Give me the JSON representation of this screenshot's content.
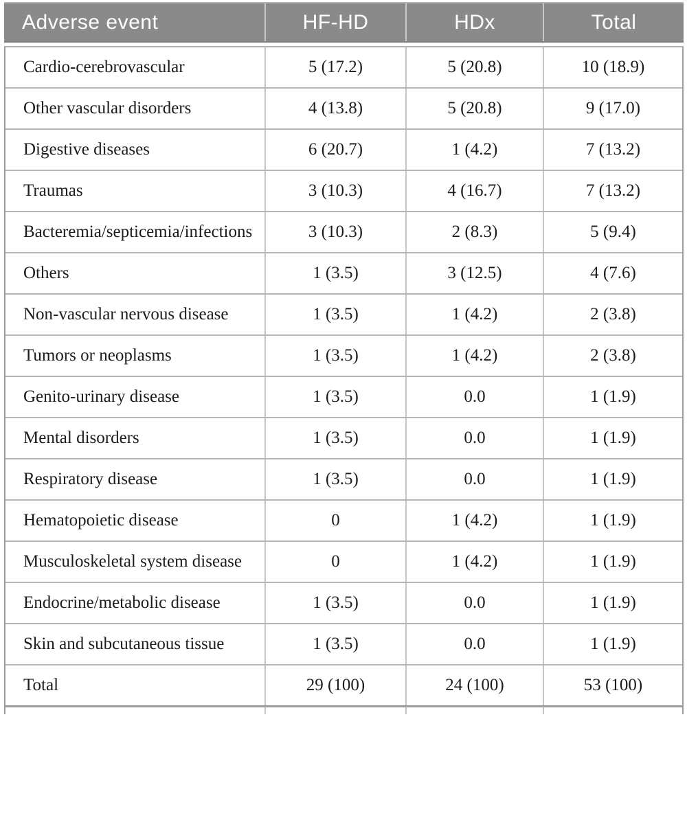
{
  "table": {
    "columns": [
      "Adverse event",
      "HF-HD",
      "HDx",
      "Total"
    ],
    "rows": [
      {
        "event": "Cardio-cerebrovascular",
        "hfhd": "5 (17.2)",
        "hdx": "5 (20.8)",
        "total": "10 (18.9)"
      },
      {
        "event": "Other vascular disorders",
        "hfhd": "4 (13.8)",
        "hdx": "5 (20.8)",
        "total": "9 (17.0)"
      },
      {
        "event": "Digestive diseases",
        "hfhd": "6 (20.7)",
        "hdx": "1 (4.2)",
        "total": "7 (13.2)"
      },
      {
        "event": "Traumas",
        "hfhd": "3 (10.3)",
        "hdx": "4 (16.7)",
        "total": "7 (13.2)"
      },
      {
        "event": "Bacteremia/septicemia/infections",
        "hfhd": "3 (10.3)",
        "hdx": "2 (8.3)",
        "total": "5 (9.4)"
      },
      {
        "event": "Others",
        "hfhd": "1 (3.5)",
        "hdx": "3 (12.5)",
        "total": "4 (7.6)"
      },
      {
        "event": "Non-vascular nervous disease",
        "hfhd": "1 (3.5)",
        "hdx": "1 (4.2)",
        "total": "2 (3.8)"
      },
      {
        "event": "Tumors or neoplasms",
        "hfhd": "1 (3.5)",
        "hdx": "1 (4.2)",
        "total": "2 (3.8)"
      },
      {
        "event": "Genito-urinary disease",
        "hfhd": "1 (3.5)",
        "hdx": "0.0",
        "total": "1 (1.9)"
      },
      {
        "event": "Mental disorders",
        "hfhd": "1 (3.5)",
        "hdx": "0.0",
        "total": "1 (1.9)"
      },
      {
        "event": "Respiratory disease",
        "hfhd": "1 (3.5)",
        "hdx": "0.0",
        "total": "1 (1.9)"
      },
      {
        "event": "Hematopoietic disease",
        "hfhd": "0",
        "hdx": "1 (4.2)",
        "total": "1 (1.9)"
      },
      {
        "event": "Musculoskeletal system disease",
        "hfhd": "0",
        "hdx": "1 (4.2)",
        "total": "1 (1.9)"
      },
      {
        "event": "Endocrine/metabolic disease",
        "hfhd": "1 (3.5)",
        "hdx": "0.0",
        "total": "1 (1.9)"
      },
      {
        "event": "Skin and subcutaneous tissue",
        "hfhd": "1 (3.5)",
        "hdx": "0.0",
        "total": "1 (1.9)"
      },
      {
        "event": "Total",
        "hfhd": "29 (100)",
        "hdx": "24 (100)",
        "total": "53 (100)"
      }
    ],
    "colors": {
      "header_bg": "#8a8a8a",
      "header_text": "#ffffff",
      "body_text": "#1c1c1c",
      "outer_border": "#9e9e9e",
      "row_border": "#b5b5b5",
      "column_border": "#c6c6c6"
    }
  }
}
